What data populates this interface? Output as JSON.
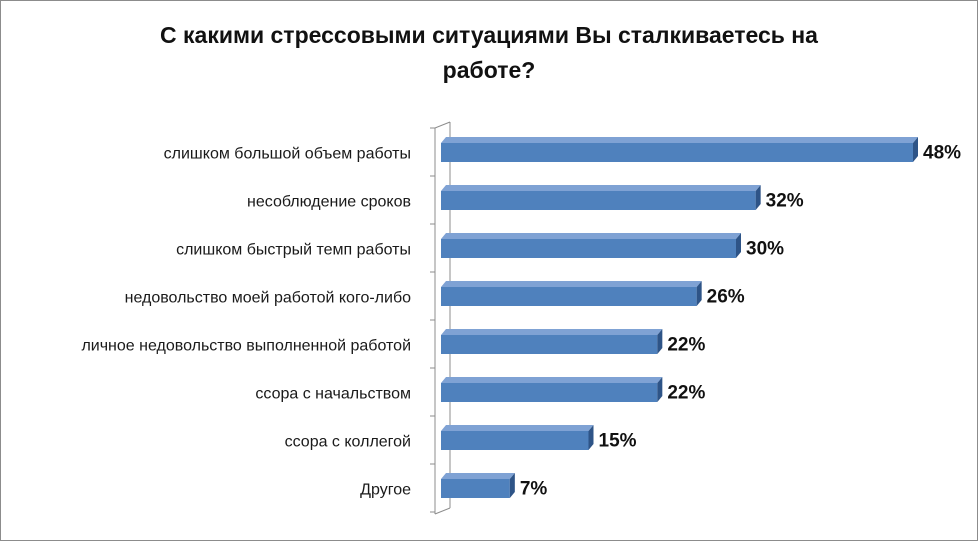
{
  "chart_data": {
    "type": "bar",
    "orientation": "horizontal",
    "title_lines": [
      "С какими стрессовыми ситуациями Вы сталкиваетесь на",
      "работе?"
    ],
    "categories": [
      "слишком большой объем работы",
      "несоблюдение сроков",
      "слишком быстрый темп работы",
      "недовольство моей работой кого-либо",
      "личное недовольство выполненной работой",
      "ссора с начальством",
      "ссора с коллегой",
      "Другое"
    ],
    "values": [
      48,
      32,
      30,
      26,
      22,
      22,
      15,
      7
    ],
    "value_labels": [
      "48%",
      "32%",
      "30%",
      "26%",
      "22%",
      "22%",
      "15%",
      "7%"
    ],
    "unit": "%",
    "xlim": [
      0,
      48
    ],
    "grid": false,
    "legend": "none",
    "bar_style": "3d",
    "colors": {
      "bar_front": "#4f81bd",
      "bar_top": "#7fa2d4",
      "bar_side": "#2e5487",
      "axis": "#8c8c8c"
    }
  }
}
